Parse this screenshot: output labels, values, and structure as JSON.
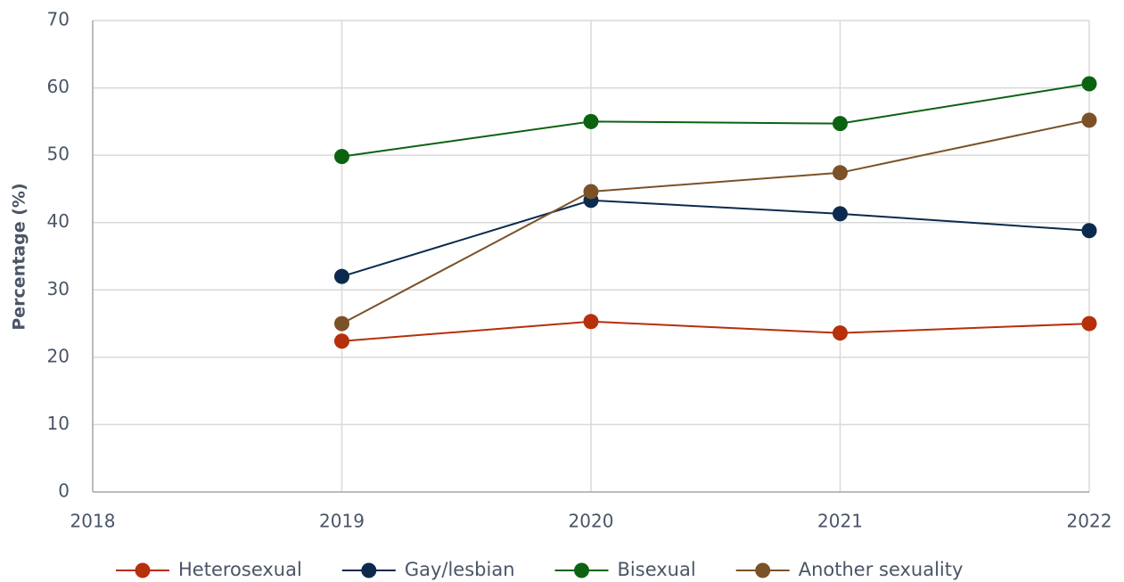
{
  "chart_data": {
    "type": "line",
    "y_label": "Percentage (%)",
    "x": [
      2019,
      2020,
      2021,
      2022
    ],
    "series": [
      {
        "name": "Heterosexual",
        "color": "#b5300b",
        "values": [
          22.4,
          25.3,
          23.6,
          25.0
        ]
      },
      {
        "name": "Gay/lesbian",
        "color": "#0c2a4e",
        "values": [
          32.0,
          43.3,
          41.3,
          38.8
        ]
      },
      {
        "name": "Bisexual",
        "color": "#0b6312",
        "values": [
          49.8,
          55.0,
          54.7,
          60.6
        ]
      },
      {
        "name": "Another sexuality",
        "color": "#7b5228",
        "values": [
          25.0,
          44.6,
          47.4,
          55.2
        ]
      }
    ],
    "xlim": [
      2018,
      2022
    ],
    "xticks": [
      2018,
      2019,
      2020,
      2021,
      2022
    ],
    "ylim": [
      0,
      70
    ],
    "yticks": [
      0,
      10,
      20,
      30,
      40,
      50,
      60,
      70
    ],
    "grid": true,
    "legend": "bottom"
  }
}
